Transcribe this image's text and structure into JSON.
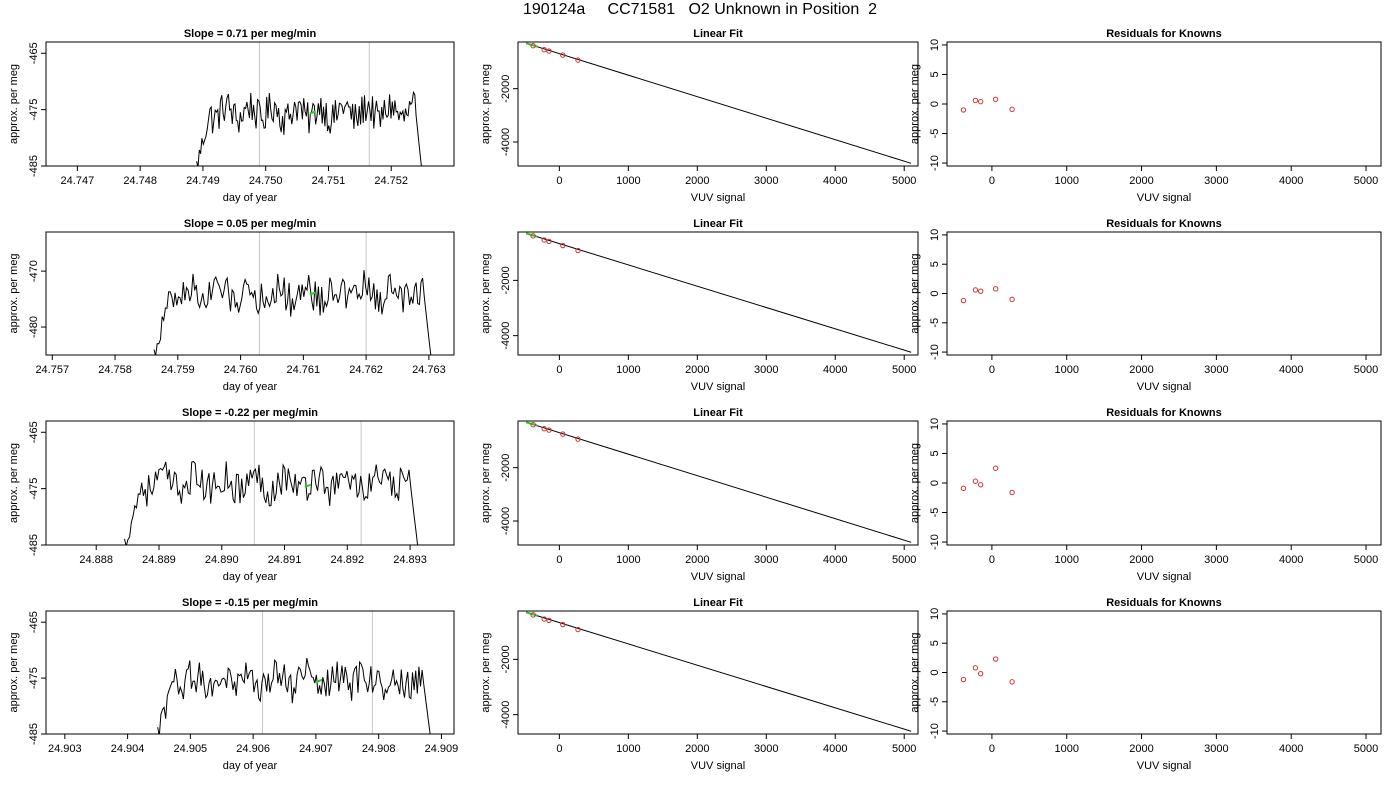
{
  "figure": {
    "title": "190124a     CC71581   O2 Unknown in Position  2",
    "colors": {
      "trace": "#000000",
      "highlight": "#22cc22",
      "residual": "#cc3333",
      "vline": "#c8c8c8"
    }
  },
  "chart_data": [
    {
      "type": "line",
      "panel": "time-series-1",
      "title": "Slope =  0.71  per meg/min",
      "xlabel": "day of year",
      "ylabel": "approx. per meg",
      "xlim": [
        24.7465,
        24.753
      ],
      "ylim": [
        -485,
        -463
      ],
      "xticks": [
        24.747,
        24.748,
        24.749,
        24.75,
        24.751,
        24.752
      ],
      "xtick_labels": [
        "24.747",
        "24.748",
        "24.749",
        "24.750",
        "24.751",
        "24.752"
      ],
      "yticks": [
        -485,
        -475,
        -465
      ],
      "ytick_labels": [
        "-485",
        "-475",
        "-465"
      ],
      "vlines": [
        24.7499,
        24.75165
      ],
      "trace_x_range": [
        24.7489,
        24.75248
      ],
      "trace_baseline": -475.5,
      "trace_end": -485,
      "highlight": {
        "x": 24.75075,
        "y": -475.5
      }
    },
    {
      "type": "line",
      "panel": "time-series-2",
      "title": "Slope =  0.05  per meg/min",
      "xlabel": "day of year",
      "ylabel": "approx. per meg",
      "xlim": [
        24.7569,
        24.7634
      ],
      "ylim": [
        -485,
        -463
      ],
      "xticks": [
        24.757,
        24.758,
        24.759,
        24.76,
        24.761,
        24.762,
        24.763
      ],
      "xtick_labels": [
        "24.757",
        "24.758",
        "24.759",
        "24.760",
        "24.761",
        "24.762",
        "24.763"
      ],
      "yticks": [
        -480,
        -470
      ],
      "ytick_labels": [
        "-480",
        "-470"
      ],
      "vlines": [
        24.7603,
        24.762
      ],
      "trace_x_range": [
        24.75862,
        24.76303
      ],
      "trace_baseline": -474,
      "trace_end": -485,
      "highlight": {
        "x": 24.76115,
        "y": -474
      }
    },
    {
      "type": "line",
      "panel": "time-series-3",
      "title": "Slope =  -0.22  per meg/min",
      "xlabel": "day of year",
      "ylabel": "approx. per meg",
      "xlim": [
        24.8872,
        24.8937
      ],
      "ylim": [
        -485,
        -463
      ],
      "xticks": [
        24.888,
        24.889,
        24.89,
        24.891,
        24.892,
        24.893
      ],
      "xtick_labels": [
        "24.888",
        "24.889",
        "24.890",
        "24.891",
        "24.892",
        "24.893"
      ],
      "yticks": [
        -485,
        -475,
        -465
      ],
      "ytick_labels": [
        "-485",
        "-475",
        "-465"
      ],
      "vlines": [
        24.89052,
        24.89222
      ],
      "trace_x_range": [
        24.88845,
        24.89312
      ],
      "trace_baseline": -474,
      "trace_end": -485,
      "highlight": {
        "x": 24.89137,
        "y": -474.5
      }
    },
    {
      "type": "line",
      "panel": "time-series-4",
      "title": "Slope =  -0.15  per meg/min",
      "xlabel": "day of year",
      "ylabel": "approx. per meg",
      "xlim": [
        24.9027,
        24.9092
      ],
      "ylim": [
        -485,
        -463
      ],
      "xticks": [
        24.903,
        24.904,
        24.905,
        24.906,
        24.907,
        24.908,
        24.909
      ],
      "xtick_labels": [
        "24.903",
        "24.904",
        "24.905",
        "24.906",
        "24.907",
        "24.908",
        "24.909"
      ],
      "yticks": [
        -485,
        -475,
        -465
      ],
      "ytick_labels": [
        "-485",
        "-475",
        "-465"
      ],
      "vlines": [
        24.90615,
        24.9079
      ],
      "trace_x_range": [
        24.90448,
        24.90882
      ],
      "trace_baseline": -475.5,
      "trace_end": -485,
      "highlight": {
        "x": 24.90705,
        "y": -475.5
      }
    },
    {
      "type": "scatter",
      "panel": "linear-fit-1",
      "title": "Linear Fit",
      "xlabel": "VUV signal",
      "ylabel": "approx. per meg",
      "xlim": [
        -600,
        5200
      ],
      "ylim": [
        -4900,
        -250
      ],
      "xticks": [
        0,
        1000,
        2000,
        3000,
        4000,
        5000
      ],
      "xtick_labels": [
        "0",
        "1000",
        "2000",
        "3000",
        "4000",
        "5000"
      ],
      "yticks": [
        -4000,
        -2000
      ],
      "ytick_labels": [
        "-4000",
        "-2000"
      ],
      "fit_line": {
        "x": [
          -480,
          5100
        ],
        "y": [
          -300,
          -4800
        ]
      },
      "highlight_segment": {
        "x": [
          -480,
          -320
        ],
        "y": [
          -300,
          -420
        ]
      },
      "known_points": {
        "x": [
          -380,
          -220,
          -150,
          50,
          270
        ],
        "y": [
          -390,
          -540,
          -590,
          -740,
          -930
        ]
      }
    },
    {
      "type": "scatter",
      "panel": "linear-fit-2",
      "title": "Linear Fit",
      "xlabel": "VUV signal",
      "ylabel": "approx. per meg",
      "xlim": [
        -600,
        5200
      ],
      "ylim": [
        -4700,
        -250
      ],
      "xticks": [
        0,
        1000,
        2000,
        3000,
        4000,
        5000
      ],
      "xtick_labels": [
        "0",
        "1000",
        "2000",
        "3000",
        "4000",
        "5000"
      ],
      "yticks": [
        -4000,
        -2000
      ],
      "ytick_labels": [
        "-4000",
        "-2000"
      ],
      "fit_line": {
        "x": [
          -480,
          5100
        ],
        "y": [
          -300,
          -4600
        ]
      },
      "highlight_segment": {
        "x": [
          -480,
          -320
        ],
        "y": [
          -300,
          -420
        ]
      },
      "known_points": {
        "x": [
          -380,
          -220,
          -150,
          50,
          270
        ],
        "y": [
          -390,
          -540,
          -590,
          -740,
          -920
        ]
      }
    },
    {
      "type": "scatter",
      "panel": "linear-fit-3",
      "title": "Linear Fit",
      "xlabel": "VUV signal",
      "ylabel": "approx. per meg",
      "xlim": [
        -600,
        5200
      ],
      "ylim": [
        -4900,
        -250
      ],
      "xticks": [
        0,
        1000,
        2000,
        3000,
        4000,
        5000
      ],
      "xtick_labels": [
        "0",
        "1000",
        "2000",
        "3000",
        "4000",
        "5000"
      ],
      "yticks": [
        -4000,
        -2000
      ],
      "ytick_labels": [
        "-4000",
        "-2000"
      ],
      "fit_line": {
        "x": [
          -480,
          5100
        ],
        "y": [
          -300,
          -4800
        ]
      },
      "highlight_segment": {
        "x": [
          -480,
          -320
        ],
        "y": [
          -300,
          -420
        ]
      },
      "known_points": {
        "x": [
          -380,
          -220,
          -150,
          50,
          270
        ],
        "y": [
          -390,
          -540,
          -590,
          -740,
          -930
        ]
      }
    },
    {
      "type": "scatter",
      "panel": "linear-fit-4",
      "title": "Linear Fit",
      "xlabel": "VUV signal",
      "ylabel": "approx. per meg",
      "xlim": [
        -600,
        5200
      ],
      "ylim": [
        -4700,
        -250
      ],
      "xticks": [
        0,
        1000,
        2000,
        3000,
        4000,
        5000
      ],
      "xtick_labels": [
        "0",
        "1000",
        "2000",
        "3000",
        "4000",
        "5000"
      ],
      "yticks": [
        -4000,
        -2000
      ],
      "ytick_labels": [
        "-4000",
        "-2000"
      ],
      "fit_line": {
        "x": [
          -480,
          5100
        ],
        "y": [
          -300,
          -4600
        ]
      },
      "highlight_segment": {
        "x": [
          -480,
          -320
        ],
        "y": [
          -300,
          -420
        ]
      },
      "known_points": {
        "x": [
          -380,
          -220,
          -150,
          50,
          270
        ],
        "y": [
          -390,
          -540,
          -590,
          -740,
          -920
        ]
      }
    },
    {
      "type": "scatter",
      "panel": "residuals-1",
      "title": "Residuals for Knowns",
      "xlabel": "VUV signal",
      "ylabel": "approx. per meg",
      "xlim": [
        -600,
        5200
      ],
      "ylim": [
        -10.5,
        10.5
      ],
      "xticks": [
        0,
        1000,
        2000,
        3000,
        4000,
        5000
      ],
      "xtick_labels": [
        "0",
        "1000",
        "2000",
        "3000",
        "4000",
        "5000"
      ],
      "yticks": [
        -10,
        -5,
        0,
        5,
        10
      ],
      "ytick_labels": [
        "-10",
        "-5",
        "0",
        "5",
        "10"
      ],
      "points": {
        "x": [
          -380,
          -220,
          -150,
          50,
          270
        ],
        "y": [
          -1.0,
          0.6,
          0.4,
          0.8,
          -0.9
        ]
      }
    },
    {
      "type": "scatter",
      "panel": "residuals-2",
      "title": "Residuals for Knowns",
      "xlabel": "VUV signal",
      "ylabel": "approx. per meg",
      "xlim": [
        -600,
        5200
      ],
      "ylim": [
        -10.5,
        10.5
      ],
      "xticks": [
        0,
        1000,
        2000,
        3000,
        4000,
        5000
      ],
      "xtick_labels": [
        "0",
        "1000",
        "2000",
        "3000",
        "4000",
        "5000"
      ],
      "yticks": [
        -10,
        -5,
        0,
        5,
        10
      ],
      "ytick_labels": [
        "-10",
        "-5",
        "0",
        "5",
        "10"
      ],
      "points": {
        "x": [
          -380,
          -220,
          -150,
          50,
          270
        ],
        "y": [
          -1.2,
          0.6,
          0.4,
          0.8,
          -1.0
        ]
      }
    },
    {
      "type": "scatter",
      "panel": "residuals-3",
      "title": "Residuals for Knowns",
      "xlabel": "VUV signal",
      "ylabel": "approx. per meg",
      "xlim": [
        -600,
        5200
      ],
      "ylim": [
        -10.5,
        10.5
      ],
      "xticks": [
        0,
        1000,
        2000,
        3000,
        4000,
        5000
      ],
      "xtick_labels": [
        "0",
        "1000",
        "2000",
        "3000",
        "4000",
        "5000"
      ],
      "yticks": [
        -10,
        -5,
        0,
        5,
        10
      ],
      "ytick_labels": [
        "-10",
        "-5",
        "0",
        "5",
        "10"
      ],
      "points": {
        "x": [
          -380,
          -220,
          -150,
          50,
          270
        ],
        "y": [
          -0.9,
          0.3,
          -0.3,
          2.5,
          -1.6
        ]
      }
    },
    {
      "type": "scatter",
      "panel": "residuals-4",
      "title": "Residuals for Knowns",
      "xlabel": "VUV signal",
      "ylabel": "approx. per meg",
      "xlim": [
        -600,
        5200
      ],
      "ylim": [
        -10.5,
        10.5
      ],
      "xticks": [
        0,
        1000,
        2000,
        3000,
        4000,
        5000
      ],
      "xtick_labels": [
        "0",
        "1000",
        "2000",
        "3000",
        "4000",
        "5000"
      ],
      "yticks": [
        -10,
        -5,
        0,
        5,
        10
      ],
      "ytick_labels": [
        "-10",
        "-5",
        "0",
        "5",
        "10"
      ],
      "points": {
        "x": [
          -380,
          -220,
          -150,
          50,
          270
        ],
        "y": [
          -1.2,
          0.8,
          -0.2,
          2.3,
          -1.6
        ]
      }
    }
  ]
}
